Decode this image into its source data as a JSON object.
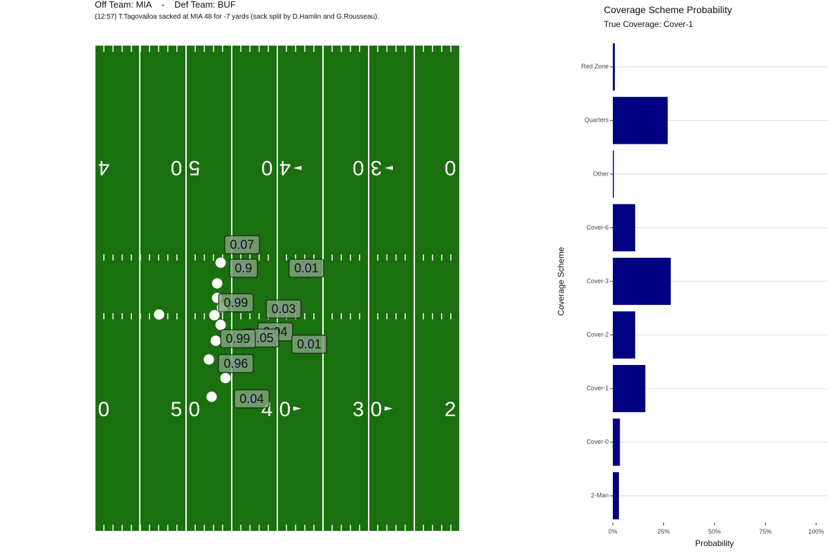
{
  "header": {
    "off_label": "Off Team: MIA",
    "def_label": "Def Team: BUF",
    "separator": "-",
    "play_description": "(12:57) T.Tagovailoa sacked at MIA 48 for -7 yards (sack split by D.Hamlin and G.Rousseau)."
  },
  "field": {
    "top_numbers": [
      "4",
      "0",
      "5",
      "0",
      "4",
      "0",
      "3",
      "0",
      "0"
    ],
    "bottom_numbers": [
      "0",
      "5",
      "0",
      "4",
      "0",
      "3",
      "0",
      "2"
    ],
    "colors": {
      "turf": "#1a6f0e",
      "lines": "#ffffff",
      "offense": "#ffffff",
      "defense": "#5555dd",
      "label_bg": "#7fa27a"
    },
    "offense_players": [
      {
        "id": "o1"
      },
      {
        "id": "o2"
      },
      {
        "id": "o3"
      },
      {
        "id": "o4"
      },
      {
        "id": "o5"
      },
      {
        "id": "o6"
      },
      {
        "id": "o7"
      },
      {
        "id": "o8"
      },
      {
        "id": "o9"
      },
      {
        "id": "o10"
      },
      {
        "id": "o11"
      }
    ],
    "defense_players": [
      {
        "label": "0.07"
      },
      {
        "label": "0.9"
      },
      {
        "label": "0.01"
      },
      {
        "label": "0.99"
      },
      {
        "label": "0.03"
      },
      {
        "label": "0.04"
      },
      {
        "label": "0.05"
      },
      {
        "label": "0.99"
      },
      {
        "label": "0.01"
      },
      {
        "label": "0.96"
      },
      {
        "label": "0.04"
      }
    ]
  },
  "chart": {
    "title": "Coverage Scheme Probability",
    "subtitle": "True Coverage: Cover-1"
  },
  "chart_data": {
    "type": "bar",
    "orientation": "horizontal",
    "title": "Coverage Scheme Probability",
    "subtitle": "True Coverage: Cover-1",
    "xlabel": "Probability",
    "ylabel": "Coverage Scheme",
    "categories": [
      "Red Zone",
      "Quarters",
      "Other",
      "Cover-6",
      "Cover-3",
      "Cover-2",
      "Cover-1",
      "Cover-0",
      "2-Man"
    ],
    "values": [
      0.01,
      0.27,
      0.005,
      0.11,
      0.285,
      0.11,
      0.16,
      0.035,
      0.03
    ],
    "xlim": [
      0,
      1
    ],
    "xticks": [
      "0%",
      "25%",
      "50%",
      "75%",
      "100%"
    ],
    "bar_color": "#000080",
    "grid": "horizontal"
  }
}
